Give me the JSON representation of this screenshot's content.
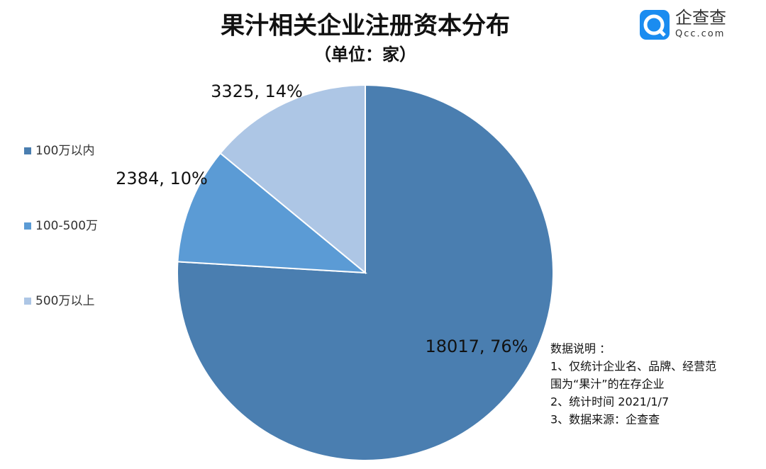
{
  "chart_data": {
    "type": "pie",
    "title": "果汁相关企业注册资本分布",
    "subtitle": "（单位：家）",
    "categories": [
      "100万以内",
      "100-500万",
      "500万以上"
    ],
    "values": [
      18017,
      2384,
      3325
    ],
    "value_labels": [
      "18017, 76%",
      "2384, 10%",
      "3325, 14%"
    ],
    "colors": [
      "#4a7eb0",
      "#5b9bd5",
      "#adc6e5"
    ],
    "legend": "left",
    "notes": [
      "数据说明 ：",
      "1、仅统计企业名、品牌、经营范",
      "围为“果汁”的在存企业",
      "2、统计时间 2021/1/7",
      "3、数据来源：企查查"
    ]
  },
  "brand": {
    "name": "企查查",
    "url": "Qcc.com"
  }
}
